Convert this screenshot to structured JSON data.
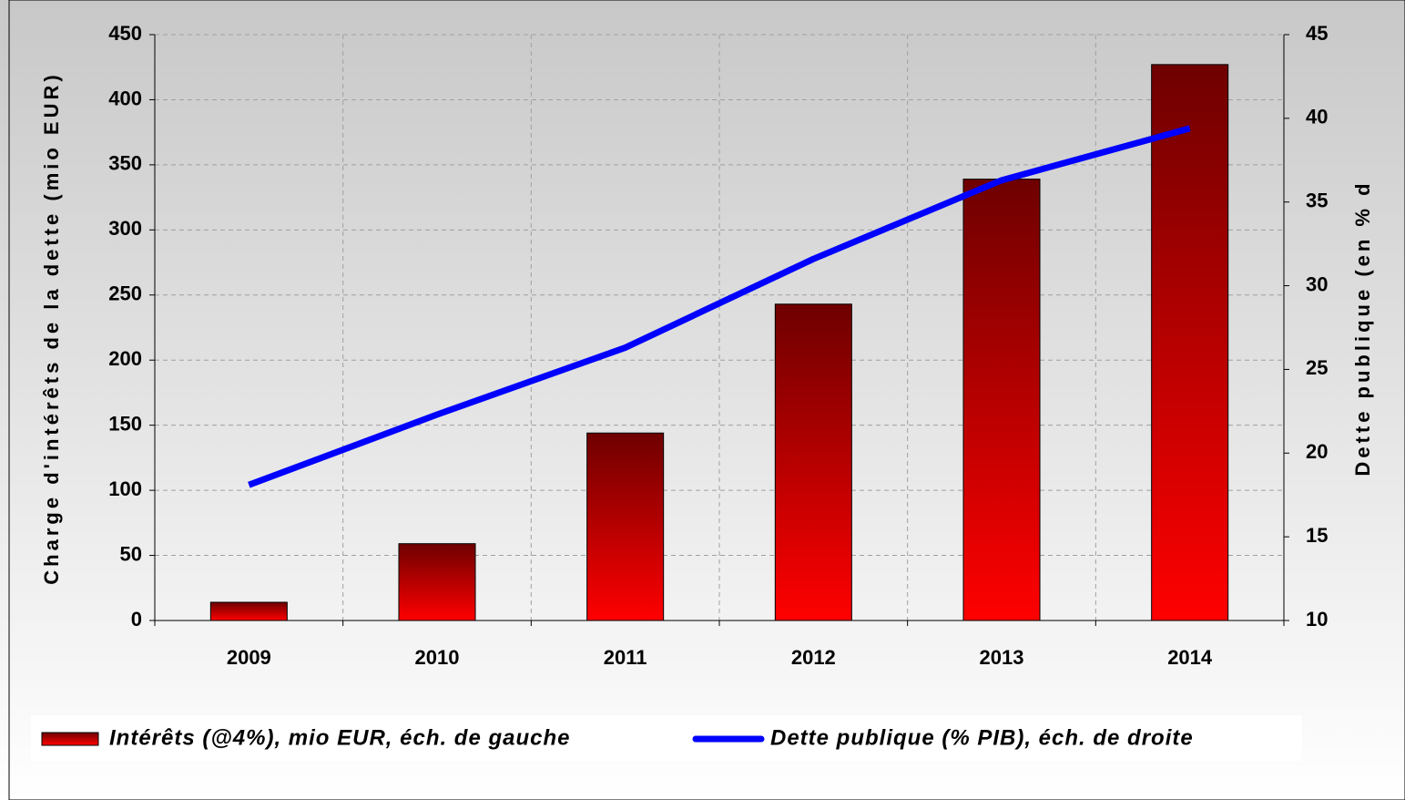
{
  "chart_data": {
    "type": "bar_line",
    "ylabel": "Charge d'intérêts de la dette (mio EUR)",
    "y2label": "Dette publique (en % d",
    "categories": [
      "2009",
      "2010",
      "2011",
      "2012",
      "2013",
      "2014"
    ],
    "series": [
      {
        "name": "Intérêts (@4%), mio EUR, éch. de gauche",
        "type": "bar",
        "color": "#ff0000",
        "values": [
          14,
          59,
          144,
          243,
          339,
          427
        ]
      },
      {
        "name": "Dette publique (% PIB), éch. de droite",
        "type": "line",
        "axis": "y2",
        "color": "#0000ff",
        "values": [
          18.1,
          22.3,
          26.3,
          31.6,
          36.3,
          39.4
        ]
      }
    ],
    "ylim": [
      0,
      450
    ],
    "yticks": [
      0,
      50,
      100,
      150,
      200,
      250,
      300,
      350,
      400,
      450
    ],
    "y2lim": [
      10,
      45
    ],
    "y2ticks": [
      10,
      15,
      20,
      25,
      30,
      35,
      40,
      45
    ],
    "grid": true,
    "legend": "bottom"
  }
}
